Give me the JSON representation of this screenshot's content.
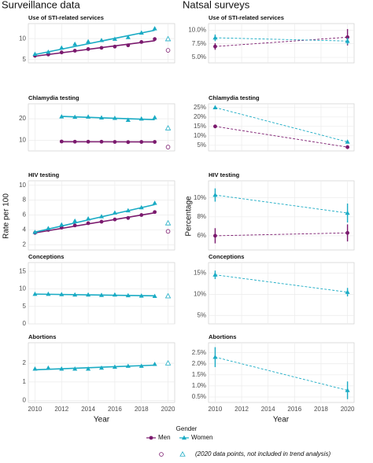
{
  "columns": [
    {
      "title": "Surveillance data",
      "y_label": "Rate per 100",
      "x_label": "Year"
    },
    {
      "title": "Natsal surveys",
      "y_label": "Percentage",
      "x_label": "Year"
    }
  ],
  "legend": {
    "title": "Gender",
    "note": "(2020 data points, not included in trend analysis)"
  },
  "chart_data": [
    {
      "type": "scatter",
      "title": "Use of STI-related services",
      "x": [
        2010,
        2011,
        2012,
        2013,
        2014,
        2015,
        2016,
        2017,
        2018,
        2019,
        2020
      ],
      "hollow_x": 2020,
      "xlim": [
        2009.5,
        2020.5
      ],
      "xticks": [
        2010,
        2012,
        2014,
        2016,
        2018,
        2020
      ],
      "ylim": [
        4.2,
        13.6
      ],
      "yticks": [
        5,
        10
      ],
      "series": [
        {
          "name": "Men",
          "color": "#7b1a6e",
          "marker": "circle",
          "values": [
            5.9,
            6.2,
            6.7,
            7.1,
            7.5,
            7.8,
            8.1,
            8.4,
            9.2,
            9.9,
            7.2
          ],
          "trend": [
            5.8,
            9.5
          ]
        },
        {
          "name": "Women",
          "color": "#1aabc4",
          "marker": "triangle",
          "values": [
            6.3,
            6.8,
            7.8,
            8.7,
            9.3,
            9.6,
            9.9,
            10.3,
            11.4,
            12.4,
            9.9
          ],
          "trend": [
            6.2,
            12.0
          ]
        }
      ]
    },
    {
      "type": "scatter",
      "title": "Chlamydia testing",
      "x": [
        2010,
        2011,
        2012,
        2013,
        2014,
        2015,
        2016,
        2017,
        2018,
        2019,
        2020
      ],
      "hollow_x": 2020,
      "xlim": [
        2009.5,
        2020.5
      ],
      "xticks": [
        2010,
        2012,
        2014,
        2016,
        2018,
        2020
      ],
      "ylim": [
        5,
        27
      ],
      "yticks": [
        10,
        20
      ],
      "series": [
        {
          "name": "Men",
          "color": "#7b1a6e",
          "marker": "circle",
          "values": [
            null,
            null,
            9.4,
            9.3,
            9.3,
            9.3,
            9.2,
            9.1,
            9.2,
            9.2,
            6.8
          ],
          "trend": [
            9.3,
            9.2
          ]
        },
        {
          "name": "Women",
          "color": "#1aabc4",
          "marker": "triangle",
          "values": [
            null,
            null,
            21.0,
            20.8,
            20.9,
            20.5,
            20.3,
            19.4,
            20.0,
            20.6,
            15.6
          ],
          "trend": [
            21.1,
            19.6
          ]
        }
      ]
    },
    {
      "type": "scatter",
      "title": "HIV testing",
      "x": [
        2010,
        2011,
        2012,
        2013,
        2014,
        2015,
        2016,
        2017,
        2018,
        2019,
        2020
      ],
      "hollow_x": 2020,
      "xlim": [
        2009.5,
        2020.5
      ],
      "xticks": [
        2010,
        2012,
        2014,
        2016,
        2018,
        2020
      ],
      "ylim": [
        1.3,
        10.6
      ],
      "yticks": [
        2,
        4,
        6,
        8,
        10
      ],
      "series": [
        {
          "name": "Men",
          "color": "#7b1a6e",
          "marker": "circle",
          "values": [
            3.6,
            4.0,
            4.3,
            4.6,
            4.9,
            5.1,
            5.4,
            5.6,
            6.0,
            6.4,
            3.8
          ],
          "trend": [
            3.6,
            6.3
          ]
        },
        {
          "name": "Women",
          "color": "#1aabc4",
          "marker": "triangle",
          "values": [
            3.7,
            4.2,
            4.7,
            5.2,
            5.5,
            5.8,
            6.3,
            6.6,
            7.0,
            7.6,
            4.9
          ],
          "trend": [
            3.7,
            7.4
          ]
        }
      ]
    },
    {
      "type": "scatter",
      "title": "Conceptions",
      "x": [
        2010,
        2011,
        2012,
        2013,
        2014,
        2015,
        2016,
        2017,
        2018,
        2019,
        2020
      ],
      "hollow_x": 2020,
      "xlim": [
        2009.5,
        2020.5
      ],
      "xticks": [
        2010,
        2012,
        2014,
        2016,
        2018,
        2020
      ],
      "ylim": [
        0,
        17.5
      ],
      "yticks": [
        0,
        5,
        10,
        15
      ],
      "series": [
        {
          "name": "Women",
          "color": "#1aabc4",
          "marker": "triangle",
          "values": [
            8.5,
            8.5,
            8.4,
            8.3,
            8.3,
            8.2,
            8.3,
            8.1,
            8.0,
            7.9,
            7.9
          ],
          "trend": [
            8.5,
            8.0
          ]
        }
      ]
    },
    {
      "type": "scatter",
      "title": "Abortions",
      "x": [
        2010,
        2011,
        2012,
        2013,
        2014,
        2015,
        2016,
        2017,
        2018,
        2019,
        2020
      ],
      "hollow_x": 2020,
      "xlim": [
        2009.5,
        2020.5
      ],
      "xticks": [
        2010,
        2012,
        2014,
        2016,
        2018,
        2020
      ],
      "ylim": [
        -0.1,
        3.1
      ],
      "yticks": [
        0,
        1,
        2
      ],
      "series": [
        {
          "name": "Women",
          "color": "#1aabc4",
          "marker": "triangle",
          "values": [
            1.7,
            1.75,
            1.7,
            1.7,
            1.7,
            1.75,
            1.8,
            1.85,
            1.85,
            1.95,
            2.0
          ],
          "trend": [
            1.65,
            1.9
          ]
        }
      ]
    },
    {
      "type": "line",
      "title": "Use of STI-related services",
      "x": [
        2010,
        2020
      ],
      "xlim": [
        2009.5,
        2020.5
      ],
      "xticks": [
        2010,
        2012,
        2014,
        2016,
        2018,
        2020
      ],
      "ylim": [
        4,
        11.2
      ],
      "yticks": [
        {
          "value": 5,
          "label": "5.0%"
        },
        {
          "value": 7.5,
          "label": "7.5%"
        },
        {
          "value": 10,
          "label": "10.0%"
        }
      ],
      "series": [
        {
          "name": "Men",
          "color": "#7b1a6e",
          "marker": "circle",
          "values": [
            7.0,
            8.7
          ],
          "errors": [
            0.6,
            1.5
          ]
        },
        {
          "name": "Women",
          "color": "#1aabc4",
          "marker": "triangle",
          "values": [
            8.6,
            8.0
          ],
          "errors": [
            0.6,
            0.6
          ]
        }
      ]
    },
    {
      "type": "line",
      "title": "Chlamydia testing",
      "x": [
        2010,
        2020
      ],
      "xlim": [
        2009.5,
        2020.5
      ],
      "xticks": [
        2010,
        2012,
        2014,
        2016,
        2018,
        2020
      ],
      "ylim": [
        2,
        27
      ],
      "yticks": [
        {
          "value": 5,
          "label": "5%"
        },
        {
          "value": 10,
          "label": "10%"
        },
        {
          "value": 15,
          "label": "15%"
        },
        {
          "value": 20,
          "label": "20%"
        },
        {
          "value": 25,
          "label": "25%"
        }
      ],
      "series": [
        {
          "name": "Men",
          "color": "#7b1a6e",
          "marker": "circle",
          "values": [
            15.0,
            4.0
          ],
          "errors": [
            0.8,
            0.7
          ]
        },
        {
          "name": "Women",
          "color": "#1aabc4",
          "marker": "triangle",
          "values": [
            25.0,
            6.8
          ],
          "errors": [
            0.8,
            0.8
          ]
        }
      ]
    },
    {
      "type": "line",
      "title": "HIV testing",
      "x": [
        2010,
        2020
      ],
      "xlim": [
        2009.5,
        2020.5
      ],
      "xticks": [
        2010,
        2012,
        2014,
        2016,
        2018,
        2020
      ],
      "ylim": [
        4.5,
        11.8
      ],
      "yticks": [
        {
          "value": 6,
          "label": "6%"
        },
        {
          "value": 8,
          "label": "8%"
        },
        {
          "value": 10,
          "label": "10%"
        }
      ],
      "series": [
        {
          "name": "Men",
          "color": "#7b1a6e",
          "marker": "circle",
          "values": [
            6.0,
            6.3
          ],
          "errors": [
            0.8,
            0.9
          ]
        },
        {
          "name": "Women",
          "color": "#1aabc4",
          "marker": "triangle",
          "values": [
            10.3,
            8.4
          ],
          "errors": [
            0.7,
            1.0
          ]
        }
      ]
    },
    {
      "type": "line",
      "title": "Conceptions",
      "x": [
        2010,
        2020
      ],
      "xlim": [
        2009.5,
        2020.5
      ],
      "xticks": [
        2010,
        2012,
        2014,
        2016,
        2018,
        2020
      ],
      "ylim": [
        3,
        17.5
      ],
      "yticks": [
        {
          "value": 5,
          "label": "5%"
        },
        {
          "value": 10,
          "label": "10%"
        },
        {
          "value": 15,
          "label": "15%"
        }
      ],
      "series": [
        {
          "name": "Women",
          "color": "#1aabc4",
          "marker": "triangle",
          "values": [
            14.6,
            10.5
          ],
          "errors": [
            1.0,
            1.0
          ]
        }
      ]
    },
    {
      "type": "line",
      "title": "Abortions",
      "x": [
        2010,
        2020
      ],
      "xlim": [
        2009.5,
        2020.5
      ],
      "xticks": [
        2010,
        2012,
        2014,
        2016,
        2018,
        2020
      ],
      "ylim": [
        0.25,
        2.95
      ],
      "yticks": [
        {
          "value": 0.5,
          "label": "0.5%"
        },
        {
          "value": 1,
          "label": "1.0%"
        },
        {
          "value": 1.5,
          "label": "1.5%"
        },
        {
          "value": 2,
          "label": "2.0%"
        },
        {
          "value": 2.5,
          "label": "2.5%"
        }
      ],
      "series": [
        {
          "name": "Women",
          "color": "#1aabc4",
          "marker": "triangle",
          "values": [
            2.3,
            0.8
          ],
          "errors": [
            0.45,
            0.4
          ]
        }
      ]
    }
  ]
}
